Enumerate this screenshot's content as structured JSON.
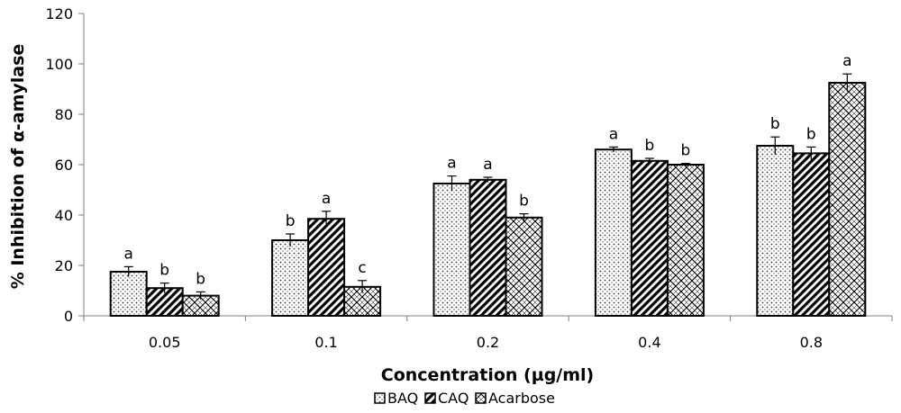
{
  "chart_data": {
    "type": "bar",
    "title": "",
    "xlabel": "Concentration (µg/ml)",
    "ylabel": "% Inhibition of α-amylase",
    "ylim": [
      0,
      120
    ],
    "yticks": [
      "0",
      "20",
      "40",
      "60",
      "80",
      "100",
      "120"
    ],
    "categories": [
      "0.05",
      "0.1",
      "0.2",
      "0.4",
      "0.8"
    ],
    "series": [
      {
        "name": "BAQ",
        "pattern": "dots",
        "values": [
          17.5,
          30,
          52.5,
          66,
          67.5
        ],
        "errors": [
          2,
          2.5,
          3,
          1,
          3.5
        ],
        "letters": [
          "a",
          "b",
          "a",
          "a",
          "b"
        ]
      },
      {
        "name": "CAQ",
        "pattern": "diagonal-hatch",
        "values": [
          11,
          38.5,
          54,
          61.5,
          64.5
        ],
        "errors": [
          2,
          3,
          1,
          1,
          2.5
        ],
        "letters": [
          "b",
          "a",
          "a",
          "b",
          "b"
        ]
      },
      {
        "name": "Acarbose",
        "pattern": "crosshatch-circles",
        "values": [
          8,
          11.5,
          39,
          60,
          92.5
        ],
        "errors": [
          1.5,
          2.5,
          1.5,
          0.5,
          3.5
        ],
        "letters": [
          "b",
          "c",
          "b",
          "b",
          "a"
        ]
      }
    ],
    "grid": false,
    "legend_position": "bottom"
  }
}
